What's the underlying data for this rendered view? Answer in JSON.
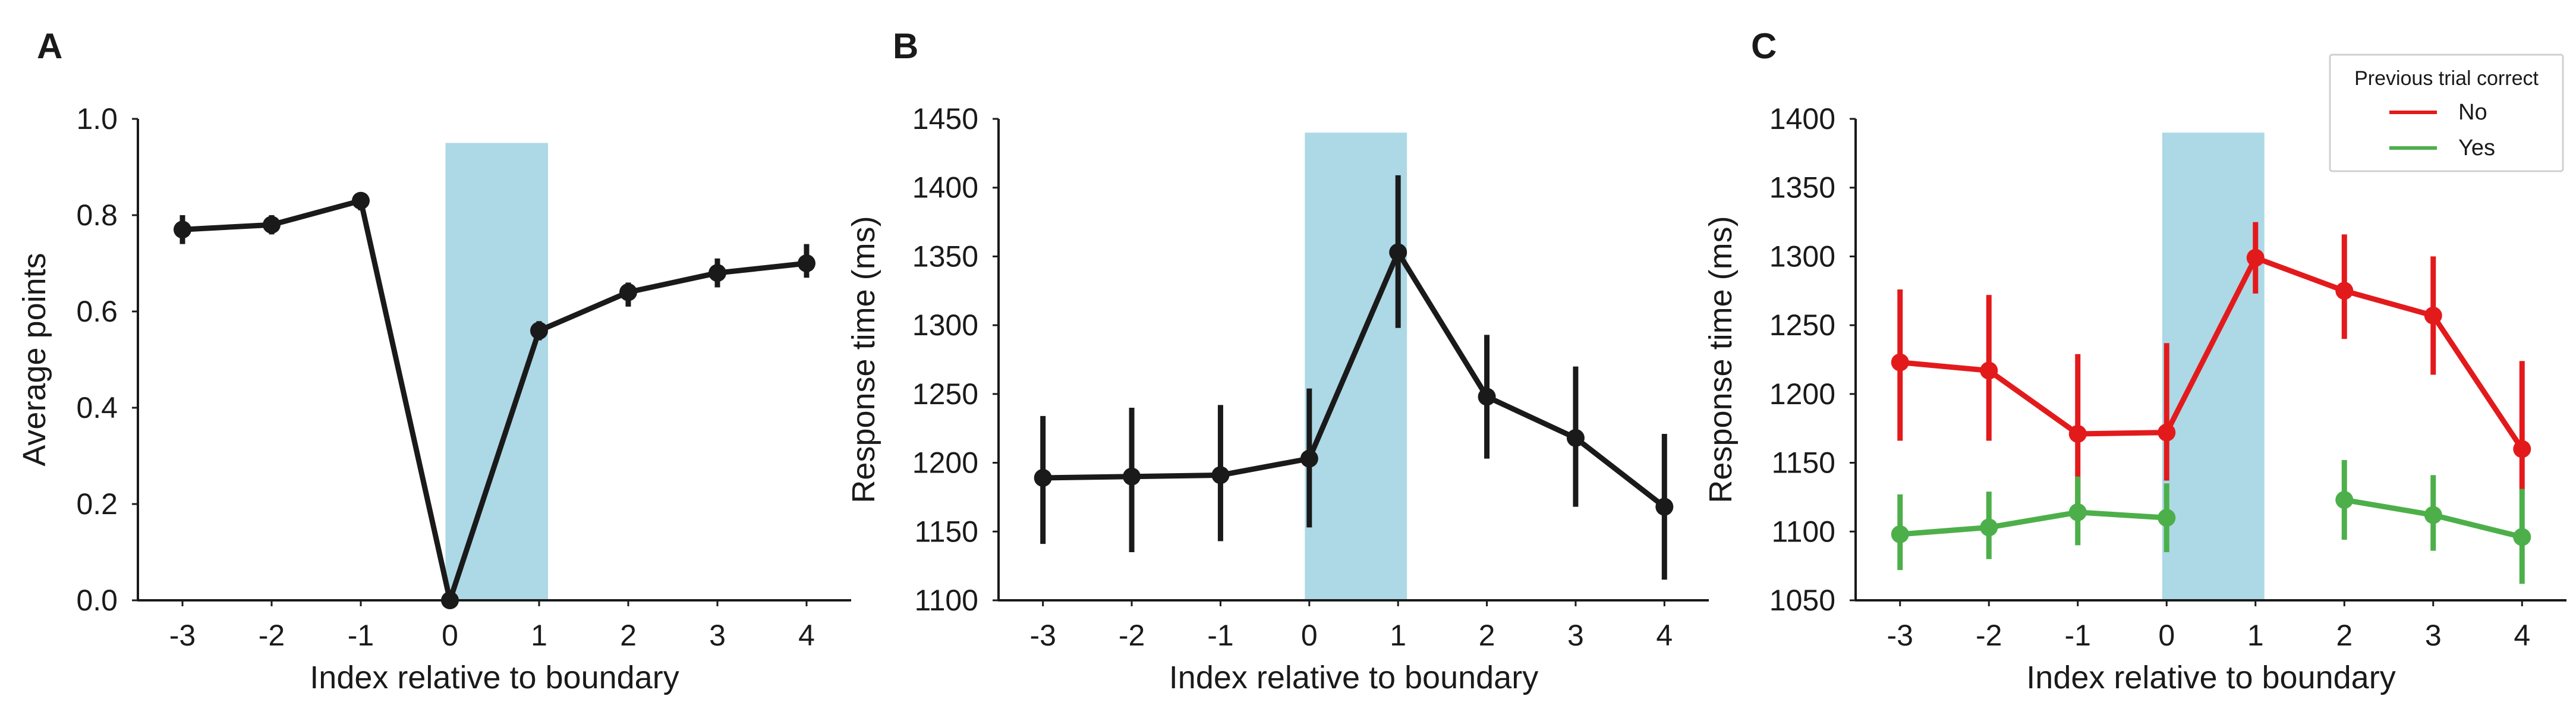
{
  "chart_data": [
    {
      "type": "line",
      "panel_label": "A",
      "xlabel": "Index relative to boundary",
      "ylabel": "Average points",
      "categories": [
        "-3",
        "-2",
        "-1",
        "0",
        "1",
        "2",
        "3",
        "4"
      ],
      "x": [
        -3,
        -2,
        -1,
        0,
        1,
        2,
        3,
        4
      ],
      "xlim": [
        -3.5,
        4.5
      ],
      "ylim": [
        0.0,
        1.0
      ],
      "yticks": [
        "0.0",
        "0.2",
        "0.4",
        "0.6",
        "0.8",
        "1.0"
      ],
      "highlight_region": {
        "x_from": -0.05,
        "x_to": 1.1,
        "y_to": 0.95,
        "color": "#add8e6"
      },
      "series": [
        {
          "color": "#1a1a1a",
          "values": [
            0.77,
            0.78,
            0.83,
            0.0,
            0.56,
            0.64,
            0.68,
            0.7
          ],
          "err_low": [
            0.74,
            0.76,
            0.81,
            0.0,
            0.54,
            0.61,
            0.65,
            0.67
          ],
          "err_high": [
            0.8,
            0.8,
            0.84,
            0.0,
            0.58,
            0.66,
            0.71,
            0.74
          ]
        }
      ]
    },
    {
      "type": "line",
      "panel_label": "B",
      "xlabel": "Index relative to boundary",
      "ylabel": "Response time (ms)",
      "categories": [
        "-3",
        "-2",
        "-1",
        "0",
        "1",
        "2",
        "3",
        "4"
      ],
      "x": [
        -3,
        -2,
        -1,
        0,
        1,
        2,
        3,
        4
      ],
      "xlim": [
        -3.5,
        4.5
      ],
      "ylim": [
        1100,
        1450
      ],
      "yticks": [
        "1100",
        "1150",
        "1200",
        "1250",
        "1300",
        "1350",
        "1400",
        "1450"
      ],
      "highlight_region": {
        "x_from": -0.05,
        "x_to": 1.1,
        "y_to": 1440,
        "color": "#add8e6"
      },
      "series": [
        {
          "color": "#1a1a1a",
          "values": [
            1189,
            1190,
            1191,
            1203,
            1353,
            1248,
            1218,
            1168
          ],
          "err_low": [
            1141,
            1135,
            1143,
            1153,
            1298,
            1203,
            1168,
            1115
          ],
          "err_high": [
            1234,
            1240,
            1242,
            1254,
            1409,
            1293,
            1270,
            1221
          ]
        }
      ]
    },
    {
      "type": "line",
      "panel_label": "C",
      "xlabel": "Index relative to boundary",
      "ylabel": "Response time (ms)",
      "categories": [
        "-3",
        "-2",
        "-1",
        "0",
        "1",
        "2",
        "3",
        "4"
      ],
      "x": [
        -3,
        -2,
        -1,
        0,
        1,
        2,
        3,
        4
      ],
      "xlim": [
        -3.5,
        4.5
      ],
      "ylim": [
        1050,
        1400
      ],
      "yticks": [
        "1050",
        "1100",
        "1150",
        "1200",
        "1250",
        "1300",
        "1350",
        "1400"
      ],
      "highlight_region": {
        "x_from": -0.05,
        "x_to": 1.1,
        "y_to": 1390,
        "color": "#add8e6"
      },
      "legend": {
        "title": "Previous trial correct",
        "position": "top-right"
      },
      "series": [
        {
          "name": "No",
          "color": "#e31a1c",
          "x": [
            -3,
            -2,
            -1,
            0,
            1,
            2,
            3,
            4
          ],
          "values": [
            1223,
            1217,
            1171,
            1172,
            1299,
            1275,
            1257,
            1160
          ],
          "err_low": [
            1166,
            1166,
            1113,
            1137,
            1273,
            1240,
            1214,
            1130
          ],
          "err_high": [
            1276,
            1272,
            1229,
            1237,
            1325,
            1316,
            1300,
            1224
          ]
        },
        {
          "name": "Yes",
          "color": "#4daf4a",
          "x": [
            -3,
            -2,
            -1,
            0,
            2,
            3,
            4
          ],
          "values": [
            1098,
            1103,
            1114,
            1110,
            1123,
            1112,
            1096
          ],
          "err_low": [
            1072,
            1080,
            1090,
            1085,
            1094,
            1086,
            1062
          ],
          "err_high": [
            1127,
            1129,
            1140,
            1135,
            1152,
            1141,
            1131
          ]
        }
      ]
    }
  ]
}
